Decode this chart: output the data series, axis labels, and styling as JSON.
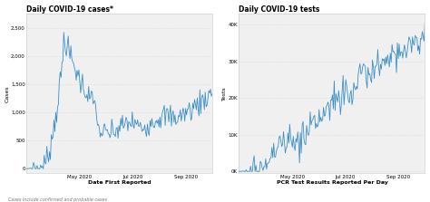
{
  "chart1_title": "Daily COVID-19 cases*",
  "chart1_ylabel": "Cases",
  "chart1_xlabel": "Date First Reported",
  "chart1_yticks": [
    0,
    500,
    1000,
    1500,
    2000,
    2500
  ],
  "chart1_ytick_labels": [
    "0",
    "500",
    "1,000",
    "1,500",
    "2,000",
    "2,500"
  ],
  "chart1_ylim": [
    -80,
    2750
  ],
  "chart2_title": "Daily COVID-19 tests",
  "chart2_ylabel": "Tests",
  "chart2_xlabel": "PCR Test Results Reported Per Day",
  "chart2_yticks": [
    0,
    10000,
    20000,
    30000,
    40000
  ],
  "chart2_ytick_labels": [
    "0K",
    "10K",
    "20K",
    "30K",
    "40K"
  ],
  "chart2_ylim": [
    -500,
    43000
  ],
  "line_color": "#3a8fc7",
  "bg_color": "#f0f0f0",
  "grid_color": "#d0d0d0",
  "footnote": "Cases include confirmed and probable cases",
  "xtick_labels": [
    "May 2020",
    "Jul 2020",
    "Sep 2020"
  ],
  "xtick_pos": [
    0.286,
    0.571,
    0.857
  ],
  "title_fontsize": 5.5,
  "label_fontsize": 4.5,
  "tick_fontsize": 4.0,
  "footnote_fontsize": 3.5,
  "line_width": 0.6
}
